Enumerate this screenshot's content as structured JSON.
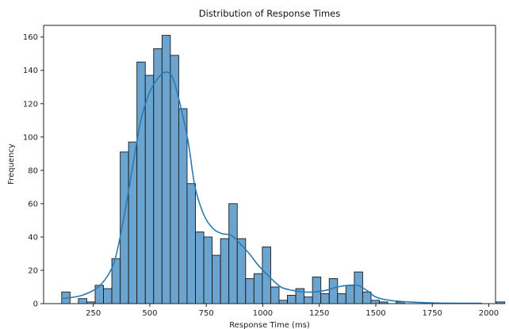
{
  "chart_data": {
    "type": "bar",
    "title": "Distribution of Response Times",
    "xlabel": "Response Time (ms)",
    "ylabel": "Frequency",
    "xlim": [
      30,
      2030
    ],
    "ylim": [
      0,
      167
    ],
    "xticks": [
      250,
      500,
      750,
      1000,
      1250,
      1500,
      1750,
      2000
    ],
    "yticks": [
      0,
      20,
      40,
      60,
      80,
      100,
      120,
      140,
      160
    ],
    "grid": false,
    "legend": "none",
    "bin_start": 110,
    "bin_width": 37,
    "counts": [
      7,
      0,
      3,
      1,
      11,
      9,
      27,
      91,
      97,
      145,
      137,
      153,
      161,
      149,
      117,
      72,
      43,
      40,
      29,
      39,
      60,
      39,
      15,
      18,
      34,
      10,
      2,
      5,
      9,
      4,
      16,
      6,
      15,
      6,
      11,
      19,
      7,
      2,
      1,
      0,
      1,
      0,
      0,
      0,
      0,
      0,
      0,
      0,
      0,
      0,
      0,
      0,
      1
    ],
    "kde": {
      "x": [
        110,
        200,
        280,
        340,
        380,
        420,
        460,
        500,
        540,
        570,
        600,
        630,
        670,
        700,
        740,
        780,
        820,
        860,
        900,
        940,
        980,
        1030,
        1080,
        1130,
        1180,
        1230,
        1280,
        1330,
        1380,
        1420,
        1460,
        1500,
        1560,
        1650,
        1800,
        1970
      ],
      "y": [
        3,
        5,
        11,
        24,
        48,
        79,
        110,
        127,
        136,
        139,
        136,
        122,
        97,
        70,
        53,
        45,
        42,
        41,
        36,
        30,
        23,
        16,
        10,
        8,
        7,
        7,
        8,
        10,
        11,
        11,
        8,
        4,
        2,
        1,
        0.3,
        0.2
      ]
    },
    "colors": {
      "bar_fill": "#6ba4cf",
      "bar_edge": "#1a1a1a",
      "kde_line": "#2a7ab6"
    }
  }
}
